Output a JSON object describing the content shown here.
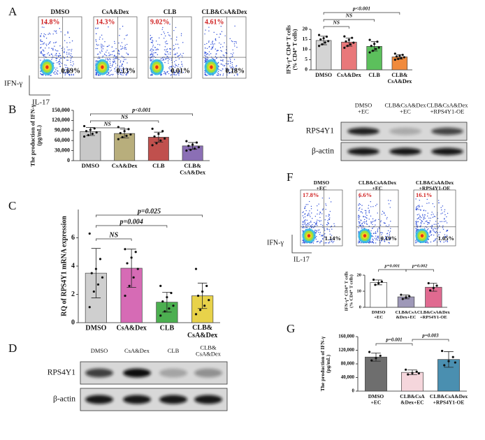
{
  "panel_letters": [
    "A",
    "B",
    "C",
    "D",
    "E",
    "F",
    "G"
  ],
  "flow_A": {
    "y_label": "IFN-γ",
    "x_label": "IL-17",
    "plots": [
      {
        "title": "DMSO",
        "upper_left": "14.8%",
        "lower_right": "0.69%"
      },
      {
        "title": "CsA&Dex",
        "upper_left": "14.3%",
        "lower_right": "0.13%"
      },
      {
        "title": "CLB",
        "upper_left": "9.02%",
        "lower_right": "0.01%"
      },
      {
        "title": "CLB&CsA&Dex",
        "upper_left": "4.61%",
        "lower_right": "0.18%"
      }
    ]
  },
  "flow_F": {
    "y_label": "IFN-γ",
    "x_label": "IL-17",
    "plots": [
      {
        "title": "DMSO\n+EC",
        "upper_left": "17.8%",
        "lower_right": "1.14%"
      },
      {
        "title": "CLB&CsA&Dex\n+EC",
        "upper_left": "6.6%",
        "lower_right": "0.19%"
      },
      {
        "title": "CLB&CsA&Dex\n+RPS4Y1-OE",
        "upper_left": "16.1%",
        "lower_right": "1.05%"
      }
    ]
  },
  "blot_D": {
    "lanes": [
      "DMSO",
      "CsA&Dex",
      "CLB",
      "CLB&\nCsA&Dex"
    ],
    "rows": [
      "RPS4Y1",
      "β-actin"
    ]
  },
  "blot_E": {
    "lanes": [
      "DMSO\n+EC",
      "CLB&CsA&Dex\n+EC",
      "CLB&CsA&Dex\n+RPS4Y1-OE"
    ],
    "rows": [
      "RPS4Y1",
      "β-actin"
    ]
  },
  "chart_data": [
    {
      "type": "bar",
      "y_label": "IFN-γ⁺ CD4⁺ T cells\n(% CD4⁺ T cells)",
      "categories": [
        "DMSO",
        "CsA&Dex",
        "CLB",
        "CLB&\nCsA&Dex"
      ],
      "values": [
        14.5,
        13.7,
        11.6,
        6.4
      ],
      "errors": [
        2.1,
        2.0,
        2.3,
        1.1
      ],
      "points": [
        [
          17.2,
          16.4,
          15.6,
          15,
          14.2,
          13.5,
          12.6,
          11.8
        ],
        [
          16.5,
          15.8,
          14.8,
          14,
          13.4,
          12.6,
          11.8,
          10.9
        ],
        [
          14.8,
          13.9,
          12.8,
          11.8,
          11,
          10.3,
          9.4,
          8.6
        ],
        [
          8,
          7.4,
          7,
          6.6,
          6.2,
          5.8,
          5.4,
          5
        ]
      ],
      "colors": [
        "#d4d4d4",
        "#e9787a",
        "#5cc05c",
        "#f08a3c"
      ],
      "ylim": [
        0,
        20
      ],
      "yticks": [
        0,
        5,
        10,
        15,
        20
      ],
      "annotations": [
        "NS",
        "NS",
        "p<0.001"
      ]
    },
    {
      "type": "bar",
      "y_label": "The production of IFN-γ\n(pg/mL)",
      "categories": [
        "DMSO",
        "CsA&Dex",
        "CLB",
        "CLB&\nCsA&Dex"
      ],
      "values": [
        87000,
        81000,
        70000,
        44000
      ],
      "errors": [
        12000,
        13000,
        15000,
        10000
      ],
      "points": [
        [
          103000,
          96000,
          92000,
          88000,
          84000,
          80000,
          76000,
          72000
        ],
        [
          100000,
          94000,
          88000,
          82000,
          78000,
          74000,
          70000,
          64000
        ],
        [
          95000,
          88000,
          80000,
          72000,
          66000,
          60000,
          52000,
          46000
        ],
        [
          58000,
          54000,
          48000,
          44000,
          40000,
          36000,
          32000,
          30000
        ]
      ],
      "colors": [
        "#c8c8c8",
        "#b8ae7c",
        "#c0504d",
        "#8b6fb5"
      ],
      "ylim": [
        0,
        150000
      ],
      "yticks": [
        0,
        {
          "value": 30000,
          "label": "30,000"
        },
        {
          "value": 60000,
          "label": "60,000"
        },
        {
          "value": 90000,
          "label": "90,000"
        },
        {
          "value": 120000,
          "label": "120,000"
        },
        {
          "value": 150000,
          "label": "150,000"
        }
      ],
      "annotations": [
        "NS",
        "NS",
        "p<0.001"
      ]
    },
    {
      "type": "bar",
      "y_label": "RQ of RPS4Y1 mRNA expression",
      "categories": [
        "DMSO",
        "CsA&Dex",
        "CLB",
        "CLB&\nCsA&Dex"
      ],
      "values": [
        3.5,
        3.85,
        1.45,
        1.9
      ],
      "errors": [
        1.75,
        1.35,
        0.7,
        0.9
      ],
      "points": [
        [
          6.3,
          4.5,
          3.8,
          3.5,
          3.2,
          2.7,
          2.2,
          1.1
        ],
        [
          5.2,
          5,
          4.6,
          4.2,
          3.8,
          3.2,
          2.6,
          1.9
        ],
        [
          2.6,
          2.1,
          1.8,
          1.5,
          1.2,
          1,
          0.8,
          0.5
        ],
        [
          3.8,
          2.6,
          2.2,
          1.9,
          1.6,
          1.2,
          0.9,
          0.6
        ]
      ],
      "colors": [
        "#cfcfcf",
        "#d66bb5",
        "#4caf50",
        "#e8d24a"
      ],
      "ylim": [
        0,
        8
      ],
      "yticks": [
        0,
        2,
        4,
        6
      ],
      "annotations": [
        "NS",
        "p=0.004",
        "p=0.025"
      ]
    },
    {
      "type": "bar",
      "y_label": "IFN-γ⁺ CD4⁺ T cells\n(% CD4⁺ T cells)",
      "categories": [
        "DMSO\n+EC",
        "CLB&CsA\n&Dex+EC",
        "CLB&CsA&Dex\n+RPS4Y1-OE"
      ],
      "values": [
        15.5,
        6.5,
        12.5
      ],
      "errors": [
        1.5,
        1.2,
        2.5
      ],
      "points": [
        [
          17.2,
          16,
          15,
          14
        ],
        [
          7.8,
          6.8,
          6.2,
          5.2
        ],
        [
          15,
          13.5,
          12,
          10.5
        ]
      ],
      "colors": [
        "#ffffff",
        "#9e98b8",
        "#e06a90"
      ],
      "ylim": [
        0,
        20
      ],
      "yticks": [
        0,
        10,
        20
      ],
      "annotations": [
        "p=0.001",
        "p=0.002"
      ]
    },
    {
      "type": "bar",
      "y_label": "The production of IFN-γ\n(pg/mL)",
      "categories": [
        "DMSO\n+EC",
        "CLB&CsA\n&Dex+EC",
        "CLB&CsA&Dex\n+RPS4Y1-OE"
      ],
      "values": [
        100000,
        55000,
        93000
      ],
      "errors": [
        12000,
        7000,
        23000
      ],
      "points": [
        [
          115000,
          104000,
          97000,
          90000
        ],
        [
          63000,
          57000,
          53000,
          49000,
          52000
        ],
        [
          118000,
          100000,
          88000,
          76000,
          84000
        ]
      ],
      "colors": [
        "#6e6e6e",
        "#f5d6dc",
        "#4a8fb0"
      ],
      "ylim": [
        0,
        160000
      ],
      "yticks": [
        0,
        {
          "value": 40000,
          "label": "40,000"
        },
        {
          "value": 80000,
          "label": "80,000"
        },
        {
          "value": 120000,
          "label": "120,000"
        },
        {
          "value": 160000,
          "label": "160,000"
        }
      ],
      "annotations": [
        "p=0.001",
        "p=0.003"
      ]
    }
  ]
}
